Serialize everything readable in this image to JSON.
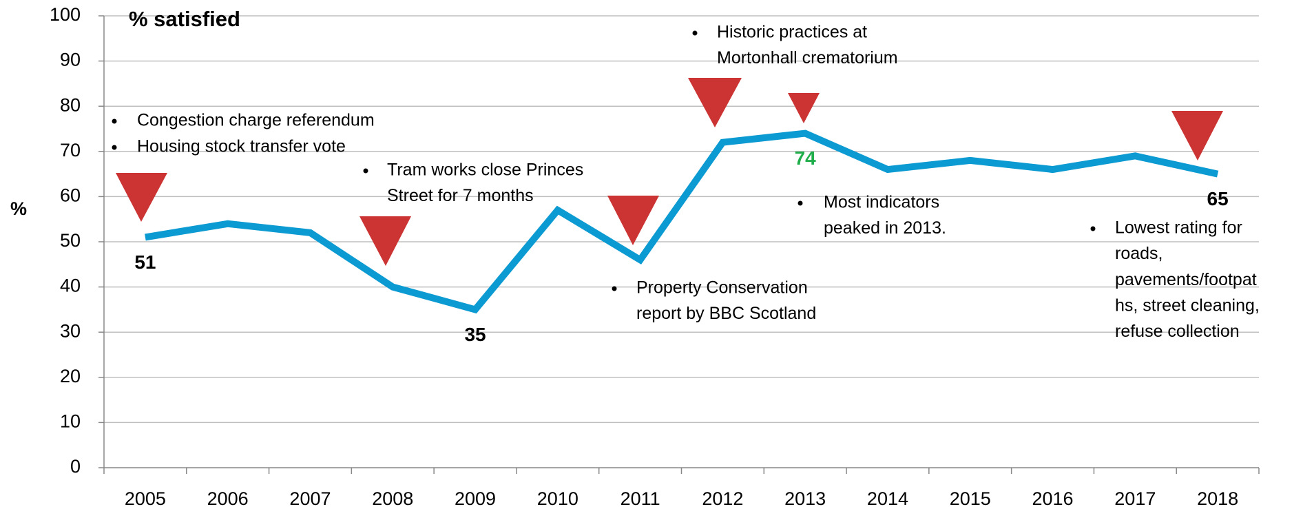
{
  "chart_data": {
    "type": "line",
    "title": "% satisfied",
    "y_label": "%",
    "categories": [
      "2005",
      "2006",
      "2007",
      "2008",
      "2009",
      "2010",
      "2011",
      "2012",
      "2013",
      "2014",
      "2015",
      "2016",
      "2017",
      "2018"
    ],
    "series": [
      {
        "name": "% satisfied",
        "color": "#0b9ad1",
        "values": [
          51,
          54,
          52,
          40,
          35,
          57,
          46,
          72,
          74,
          66,
          68,
          66,
          69,
          65
        ],
        "value_labels": [
          "51",
          null,
          null,
          null,
          "35",
          null,
          null,
          null,
          "74",
          null,
          null,
          null,
          null,
          "65"
        ]
      }
    ],
    "ylim": [
      0,
      100
    ],
    "yticks": [
      0,
      10,
      20,
      30,
      40,
      50,
      60,
      70,
      80,
      90,
      100
    ],
    "grid": true,
    "annotations": [
      {
        "lines": [
          "Congestion charge referendum"
        ]
      },
      {
        "lines": [
          "Housing stock transfer vote"
        ]
      },
      {
        "lines": [
          "Tram works close Princes",
          "Street for 7 months"
        ]
      },
      {
        "lines": [
          "Historic practices at",
          "Mortonhall crematorium"
        ]
      },
      {
        "lines": [
          "Property Conservation",
          "report by BBC Scotland"
        ]
      },
      {
        "lines": [
          "Most indicators",
          "peaked in 2013."
        ]
      },
      {
        "lines": [
          "Lowest rating for",
          "roads,",
          "pavements/footpat",
          "hs, street cleaning,",
          "refuse collection"
        ]
      }
    ]
  }
}
